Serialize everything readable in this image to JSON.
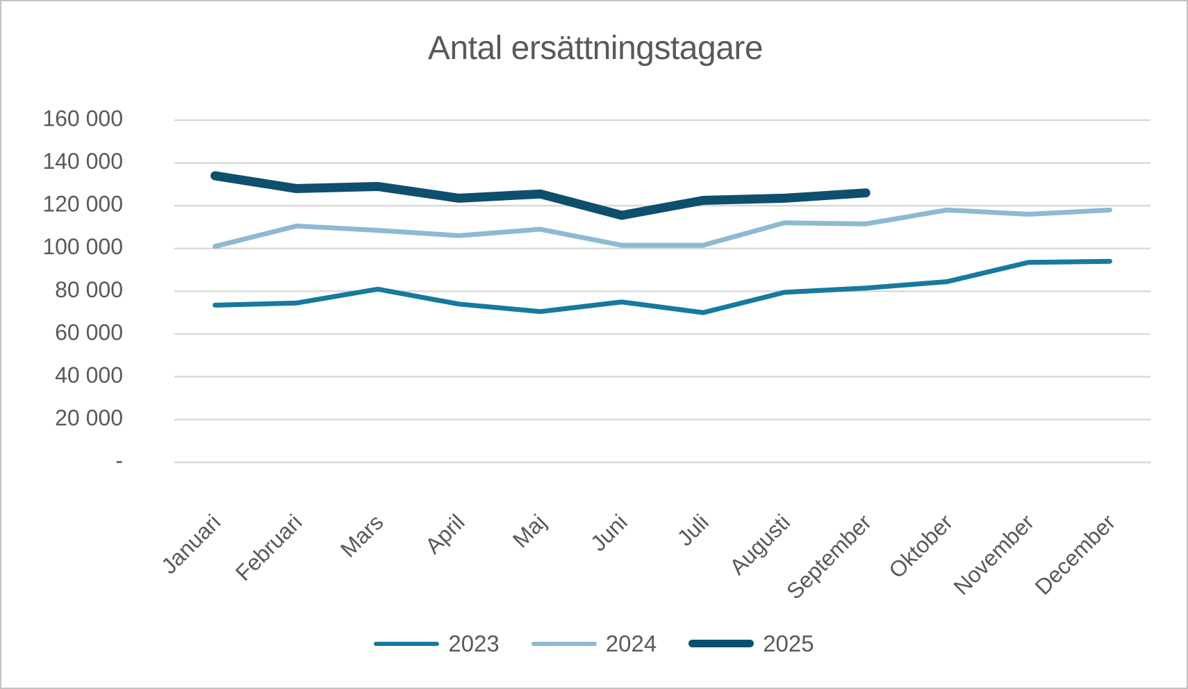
{
  "window": {
    "background": "#ffffff",
    "border_color": "#c3c3c3"
  },
  "chart_data": {
    "type": "line",
    "title": "Antal ersättningstagare",
    "categories": [
      "Januari",
      "Februari",
      "Mars",
      "April",
      "Maj",
      "Juni",
      "Juli",
      "Augusti",
      "September",
      "Oktober",
      "November",
      "December"
    ],
    "series": [
      {
        "name": "2023",
        "color": "#17799E",
        "stroke_width": 7,
        "legend_stroke_height": 6,
        "values": [
          73500,
          74500,
          81000,
          74000,
          70500,
          75000,
          70000,
          79500,
          81500,
          84500,
          93500,
          94000
        ]
      },
      {
        "name": "2024",
        "color": "#8CBAD1",
        "stroke_width": 7,
        "legend_stroke_height": 6,
        "values": [
          101000,
          110500,
          108500,
          106000,
          109000,
          101500,
          101500,
          112000,
          111500,
          118000,
          116000,
          118000
        ]
      },
      {
        "name": "2025",
        "color": "#0E4F6E",
        "stroke_width": 13,
        "legend_stroke_height": 11,
        "values": [
          134000,
          128000,
          129000,
          123500,
          125500,
          115500,
          122500,
          123500,
          126000
        ]
      }
    ],
    "y_axis": {
      "min": 0,
      "max": 160000,
      "step": 20000,
      "tick_labels_top_to_bottom": [
        "160 000",
        "140 000",
        "120 000",
        "100 000",
        "80 000",
        "60 000",
        "40 000",
        "20 000",
        "-"
      ]
    },
    "x_axis": {
      "label_rotation_deg": -45
    },
    "grid": true,
    "legend_position": "bottom",
    "text_color": "#595959",
    "gridline_color": "#D9D9D9"
  }
}
